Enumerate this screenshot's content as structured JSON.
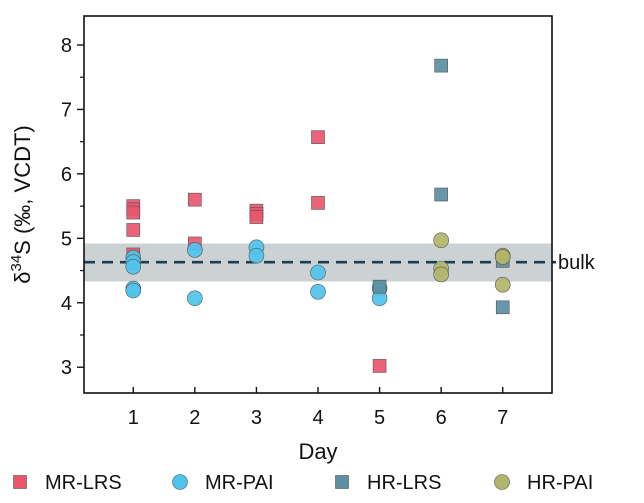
{
  "chart_data": {
    "type": "scatter",
    "title": "",
    "xlabel": "Day",
    "ylabel": {
      "prefix": "δ",
      "sup": "34",
      "rest": "S (‰, VCDT)"
    },
    "xlim": [
      0.2,
      7.8
    ],
    "ylim": [
      2.6,
      8.45
    ],
    "x_ticks": [
      1,
      2,
      3,
      4,
      5,
      6,
      7
    ],
    "y_ticks": [
      3,
      4,
      5,
      6,
      7,
      8
    ],
    "y_minor_ticks": [
      3.5,
      4.5,
      5.5,
      6.5,
      7.5
    ],
    "grid": false,
    "legend_position": "bottom",
    "series": [
      {
        "name": "MR-LRS",
        "marker": "square",
        "color": "#e8566d",
        "points": [
          {
            "x": 1,
            "y": 5.5
          },
          {
            "x": 1,
            "y": 5.45
          },
          {
            "x": 1,
            "y": 5.4
          },
          {
            "x": 1,
            "y": 5.13
          },
          {
            "x": 1,
            "y": 4.75
          },
          {
            "x": 2,
            "y": 5.6
          },
          {
            "x": 2,
            "y": 4.92
          },
          {
            "x": 3,
            "y": 5.43
          },
          {
            "x": 3,
            "y": 5.38
          },
          {
            "x": 3,
            "y": 5.33
          },
          {
            "x": 4,
            "y": 6.57
          },
          {
            "x": 4,
            "y": 5.55
          },
          {
            "x": 5,
            "y": 3.02
          }
        ]
      },
      {
        "name": "MR-PAI",
        "marker": "circle",
        "color": "#4fc3ec",
        "points": [
          {
            "x": 1,
            "y": 4.7
          },
          {
            "x": 1,
            "y": 4.63
          },
          {
            "x": 1,
            "y": 4.56
          },
          {
            "x": 1,
            "y": 4.22
          },
          {
            "x": 1,
            "y": 4.19
          },
          {
            "x": 2,
            "y": 4.82
          },
          {
            "x": 2,
            "y": 4.07
          },
          {
            "x": 3,
            "y": 4.86
          },
          {
            "x": 3,
            "y": 4.73
          },
          {
            "x": 4,
            "y": 4.47
          },
          {
            "x": 4,
            "y": 4.17
          },
          {
            "x": 5,
            "y": 4.23
          },
          {
            "x": 5,
            "y": 4.07
          }
        ]
      },
      {
        "name": "HR-LRS",
        "marker": "square",
        "color": "#5b8fa1",
        "points": [
          {
            "x": 5,
            "y": 4.25
          },
          {
            "x": 6,
            "y": 7.68
          },
          {
            "x": 6,
            "y": 5.68
          },
          {
            "x": 7,
            "y": 4.65
          },
          {
            "x": 7,
            "y": 3.93
          }
        ]
      },
      {
        "name": "HR-PAI",
        "marker": "circle",
        "color": "#b1b56a",
        "points": [
          {
            "x": 6,
            "y": 4.97
          },
          {
            "x": 6,
            "y": 4.53
          },
          {
            "x": 6,
            "y": 4.44
          },
          {
            "x": 7,
            "y": 4.73
          },
          {
            "x": 7,
            "y": 4.71
          },
          {
            "x": 7,
            "y": 4.28
          }
        ]
      }
    ],
    "reference": {
      "label": "bulk",
      "value": 4.63,
      "band": [
        4.33,
        4.92
      ],
      "line_color": "#1b3d4f",
      "band_color": "#c6cdcf"
    }
  }
}
